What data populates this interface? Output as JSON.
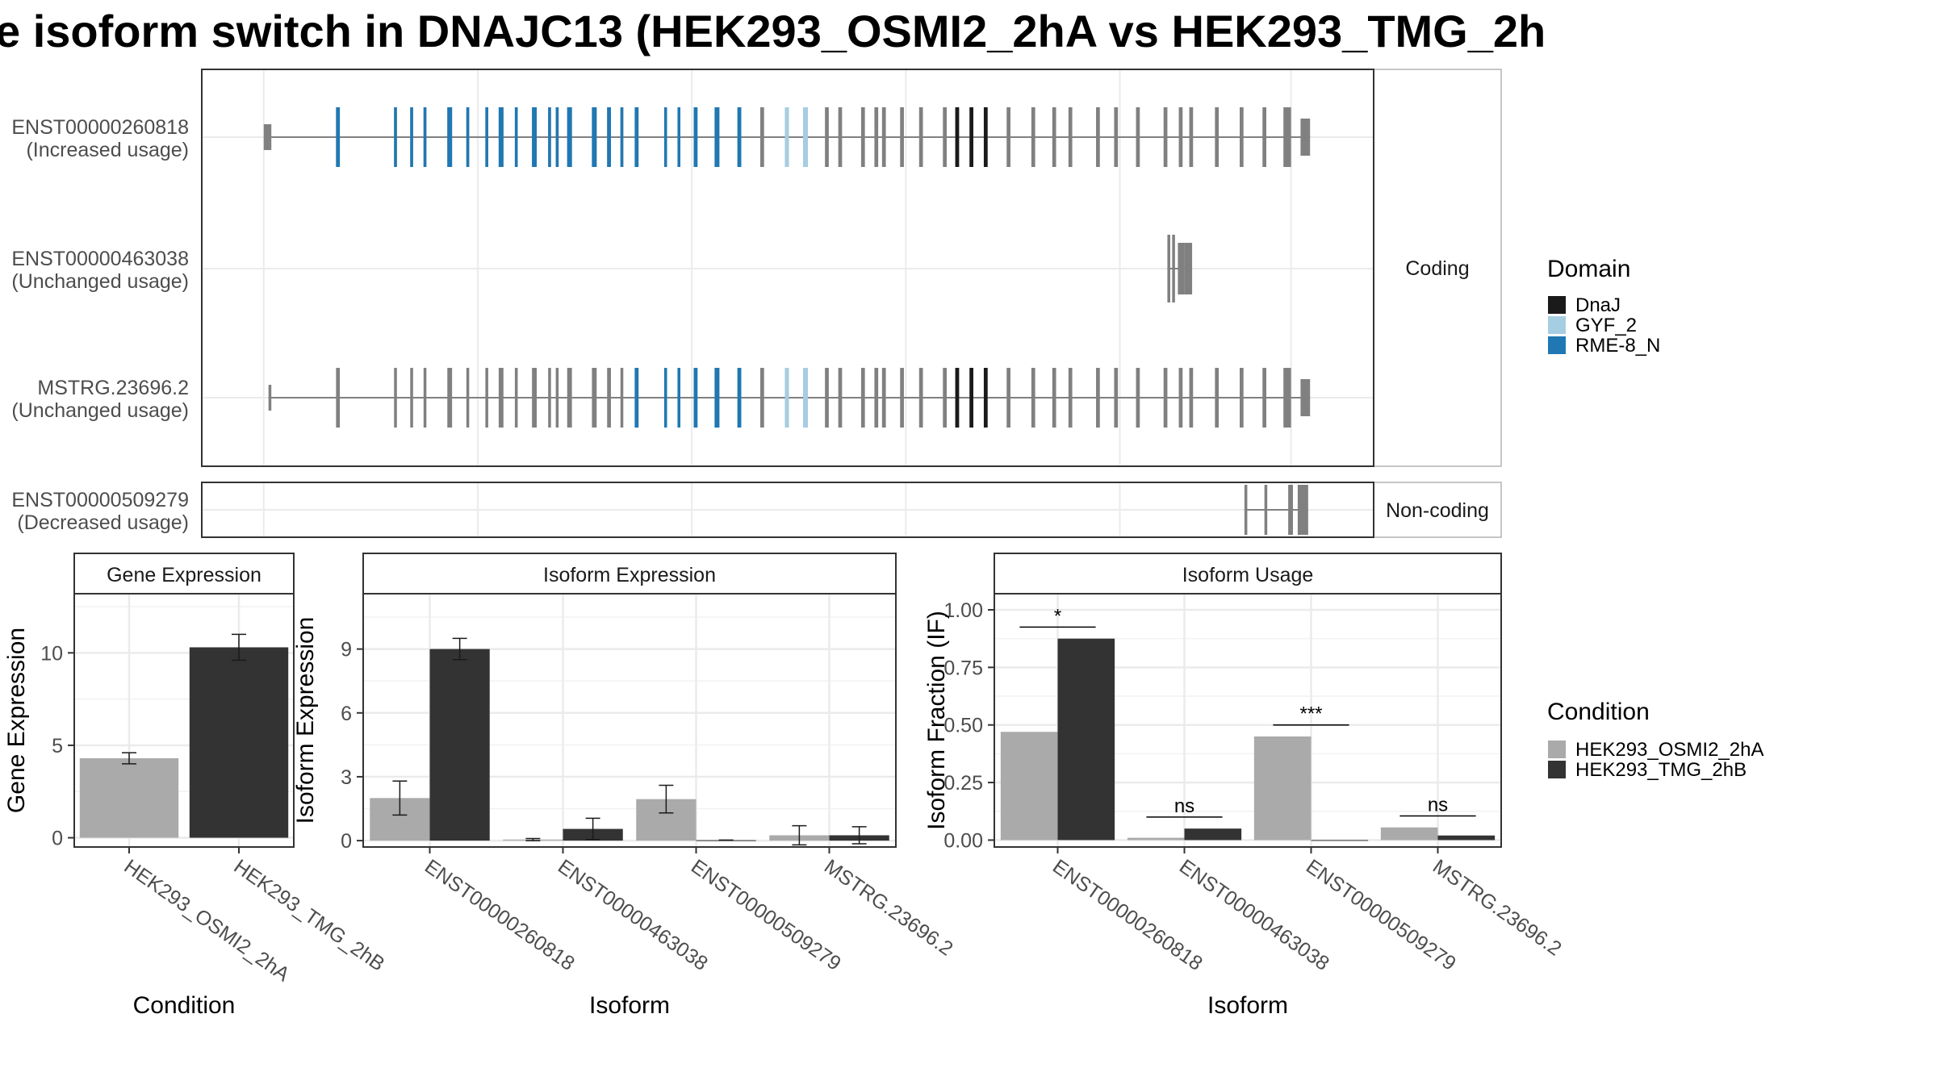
{
  "title": "e isoform switch in DNAJC13 (HEK293_OSMI2_2hA vs HEK293_TMG_2h",
  "colors": {
    "exon": "#808080",
    "DnaJ": "#1a1a1a",
    "GYF_2": "#a6cee3",
    "RME-8_N": "#1f78b4",
    "HEK293_OSMI2_2hA": "#aaaaaa",
    "HEK293_TMG_2hB": "#333333"
  },
  "structure": {
    "facets": [
      "Coding",
      "Non-coding"
    ],
    "isoforms": [
      {
        "id": "ENST00000260818",
        "usage": "(Increased usage)",
        "facet": "Coding",
        "exons": [
          [
            0,
            8
          ],
          [
            76,
            80
          ],
          [
            137,
            140
          ],
          [
            154,
            157
          ],
          [
            168,
            171
          ],
          [
            193,
            198
          ],
          [
            213,
            216
          ],
          [
            233,
            236
          ],
          [
            247,
            252
          ],
          [
            264,
            267
          ],
          [
            282,
            287
          ],
          [
            299,
            302
          ],
          [
            307,
            310
          ],
          [
            319,
            324
          ],
          [
            345,
            350
          ],
          [
            361,
            365
          ],
          [
            375,
            378
          ],
          [
            390,
            394
          ],
          [
            421,
            424
          ],
          [
            435,
            438
          ],
          [
            452,
            456
          ],
          [
            474,
            479
          ],
          [
            498,
            502
          ],
          [
            522,
            526
          ],
          [
            548,
            552
          ],
          [
            567,
            572
          ],
          [
            590,
            594
          ],
          [
            604,
            608
          ],
          [
            628,
            632
          ],
          [
            642,
            646
          ],
          [
            650,
            654
          ],
          [
            669,
            673
          ],
          [
            689,
            693
          ],
          [
            714,
            718
          ],
          [
            727,
            731
          ],
          [
            742,
            746
          ],
          [
            757,
            761
          ],
          [
            781,
            785
          ],
          [
            807,
            811
          ],
          [
            829,
            833
          ],
          [
            846,
            850
          ],
          [
            875,
            879
          ],
          [
            894,
            898
          ],
          [
            917,
            921
          ],
          [
            946,
            950
          ],
          [
            962,
            966
          ],
          [
            973,
            977
          ],
          [
            1000,
            1004
          ],
          [
            1026,
            1030
          ],
          [
            1050,
            1054
          ],
          [
            1072,
            1080
          ],
          [
            1090,
            1100
          ]
        ],
        "domains": [
          [
            "RME-8_N",
            76,
            80
          ],
          [
            "RME-8_N",
            137,
            140
          ],
          [
            "RME-8_N",
            154,
            157
          ],
          [
            "RME-8_N",
            168,
            171
          ],
          [
            "RME-8_N",
            193,
            198
          ],
          [
            "RME-8_N",
            213,
            216
          ],
          [
            "RME-8_N",
            233,
            236
          ],
          [
            "RME-8_N",
            247,
            252
          ],
          [
            "RME-8_N",
            264,
            267
          ],
          [
            "RME-8_N",
            282,
            287
          ],
          [
            "RME-8_N",
            299,
            302
          ],
          [
            "RME-8_N",
            307,
            310
          ],
          [
            "RME-8_N",
            319,
            324
          ],
          [
            "RME-8_N",
            345,
            350
          ],
          [
            "RME-8_N",
            361,
            365
          ],
          [
            "RME-8_N",
            375,
            378
          ],
          [
            "RME-8_N",
            390,
            394
          ],
          [
            "RME-8_N",
            421,
            424
          ],
          [
            "RME-8_N",
            435,
            438
          ],
          [
            "RME-8_N",
            452,
            456
          ],
          [
            "RME-8_N",
            474,
            479
          ],
          [
            "RME-8_N",
            498,
            502
          ],
          [
            "GYF_2",
            548,
            552
          ],
          [
            "GYF_2",
            567,
            572
          ],
          [
            "DnaJ",
            727,
            731
          ],
          [
            "DnaJ",
            742,
            746
          ],
          [
            "DnaJ",
            757,
            761
          ]
        ]
      },
      {
        "id": "ENST00000463038",
        "usage": "(Unchanged usage)",
        "facet": "Coding",
        "exons": [
          [
            950,
            953
          ],
          [
            955,
            958
          ],
          [
            961,
            968
          ],
          [
            968,
            976
          ]
        ],
        "domains": []
      },
      {
        "id": "MSTRG.23696.2",
        "usage": "(Unchanged usage)",
        "facet": "Coding",
        "exons": [
          [
            5,
            8
          ],
          [
            76,
            80
          ],
          [
            137,
            140
          ],
          [
            154,
            157
          ],
          [
            168,
            171
          ],
          [
            193,
            198
          ],
          [
            213,
            216
          ],
          [
            233,
            236
          ],
          [
            247,
            252
          ],
          [
            264,
            267
          ],
          [
            282,
            287
          ],
          [
            299,
            302
          ],
          [
            307,
            310
          ],
          [
            319,
            324
          ],
          [
            345,
            350
          ],
          [
            361,
            365
          ],
          [
            375,
            378
          ],
          [
            390,
            394
          ],
          [
            421,
            424
          ],
          [
            435,
            438
          ],
          [
            452,
            456
          ],
          [
            474,
            479
          ],
          [
            498,
            502
          ],
          [
            522,
            526
          ],
          [
            548,
            552
          ],
          [
            567,
            572
          ],
          [
            590,
            594
          ],
          [
            604,
            608
          ],
          [
            628,
            632
          ],
          [
            642,
            646
          ],
          [
            650,
            654
          ],
          [
            669,
            673
          ],
          [
            689,
            693
          ],
          [
            714,
            718
          ],
          [
            727,
            731
          ],
          [
            742,
            746
          ],
          [
            757,
            761
          ],
          [
            781,
            785
          ],
          [
            807,
            811
          ],
          [
            829,
            833
          ],
          [
            846,
            850
          ],
          [
            875,
            879
          ],
          [
            894,
            898
          ],
          [
            917,
            921
          ],
          [
            946,
            950
          ],
          [
            962,
            966
          ],
          [
            973,
            977
          ],
          [
            1000,
            1004
          ],
          [
            1026,
            1030
          ],
          [
            1050,
            1054
          ],
          [
            1072,
            1080
          ],
          [
            1090,
            1100
          ]
        ],
        "domains": [
          [
            "RME-8_N",
            390,
            394
          ],
          [
            "RME-8_N",
            421,
            424
          ],
          [
            "RME-8_N",
            435,
            438
          ],
          [
            "RME-8_N",
            452,
            456
          ],
          [
            "RME-8_N",
            474,
            479
          ],
          [
            "RME-8_N",
            498,
            502
          ],
          [
            "GYF_2",
            548,
            552
          ],
          [
            "GYF_2",
            567,
            572
          ],
          [
            "DnaJ",
            727,
            731
          ],
          [
            "DnaJ",
            742,
            746
          ],
          [
            "DnaJ",
            757,
            761
          ]
        ]
      },
      {
        "id": "ENST00000509279",
        "usage": "(Decreased usage)",
        "facet": "Non-coding",
        "exons": [
          [
            1031,
            1034
          ],
          [
            1052,
            1055
          ],
          [
            1077,
            1082
          ],
          [
            1087,
            1098
          ]
        ],
        "domains": []
      }
    ]
  },
  "legend_domain": {
    "title": "Domain",
    "items": [
      "DnaJ",
      "GYF_2",
      "RME-8_N"
    ]
  },
  "legend_condition": {
    "title": "Condition",
    "items": [
      "HEK293_OSMI2_2hA",
      "HEK293_TMG_2hB"
    ]
  },
  "chart_data": [
    {
      "type": "bar",
      "title": "Gene Expression",
      "xlabel": "Condition",
      "ylabel": "Gene Expression",
      "categories": [
        "HEK293_OSMI2_2hA",
        "HEK293_TMG_2hB"
      ],
      "values": [
        4.3,
        10.3
      ],
      "errors": [
        0.3,
        0.7
      ],
      "ylim": [
        -0.5,
        13.2
      ],
      "yticks": [
        0,
        5,
        10
      ]
    },
    {
      "type": "bar",
      "title": "Isoform Expression",
      "xlabel": "Isoform",
      "ylabel": "Isoform Expression",
      "categories": [
        "ENST00000260818",
        "ENST00000463038",
        "ENST00000509279",
        "MSTRG.23696.2"
      ],
      "series": [
        {
          "name": "HEK293_OSMI2_2hA",
          "values": [
            2.0,
            0.05,
            1.95,
            0.25
          ],
          "errors": [
            0.8,
            0.05,
            0.65,
            0.45
          ]
        },
        {
          "name": "HEK293_TMG_2hB",
          "values": [
            9.0,
            0.55,
            0.02,
            0.25
          ],
          "errors": [
            0.5,
            0.5,
            0.0,
            0.4
          ]
        }
      ],
      "ylim": [
        -0.3,
        11.6
      ],
      "yticks": [
        0,
        3,
        6,
        9
      ]
    },
    {
      "type": "bar",
      "title": "Isoform Usage",
      "xlabel": "Isoform",
      "ylabel": "Isoform Fraction (IF)",
      "categories": [
        "ENST00000260818",
        "ENST00000463038",
        "ENST00000509279",
        "MSTRG.23696.2"
      ],
      "series": [
        {
          "name": "HEK293_OSMI2_2hA",
          "values": [
            0.47,
            0.01,
            0.45,
            0.055
          ]
        },
        {
          "name": "HEK293_TMG_2hB",
          "values": [
            0.875,
            0.05,
            0.0,
            0.02
          ]
        }
      ],
      "significance": [
        "*",
        "ns",
        "***",
        "ns"
      ],
      "ylim": [
        -0.03,
        1.07
      ],
      "yticks": [
        0.0,
        0.25,
        0.5,
        0.75,
        1.0
      ],
      "ytick_labels": [
        "0.00",
        "0.25",
        "0.50",
        "0.75",
        "1.00"
      ]
    }
  ]
}
